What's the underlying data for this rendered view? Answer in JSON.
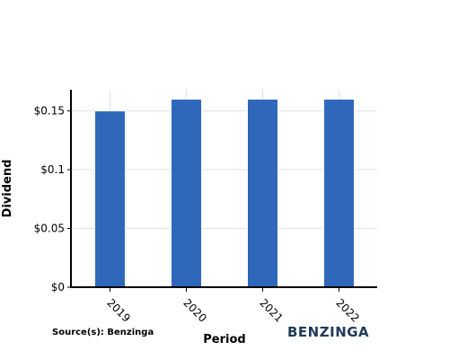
{
  "chart_data": {
    "type": "bar",
    "categories": [
      "2019",
      "2020",
      "2021",
      "2022"
    ],
    "values": [
      0.15,
      0.16,
      0.16,
      0.16
    ],
    "xlabel": "Period",
    "ylabel": "Dividend",
    "ylim": [
      0,
      0.168
    ],
    "yticks": [
      0,
      0.05,
      0.1,
      0.15
    ],
    "ytick_labels": [
      "$0",
      "$0.05",
      "$0.1",
      "$0.15"
    ],
    "grid": true,
    "bar_color": "#2f68bb"
  },
  "footer": {
    "source": "Source(s): Benzinga",
    "brand": "BENZINGA"
  }
}
